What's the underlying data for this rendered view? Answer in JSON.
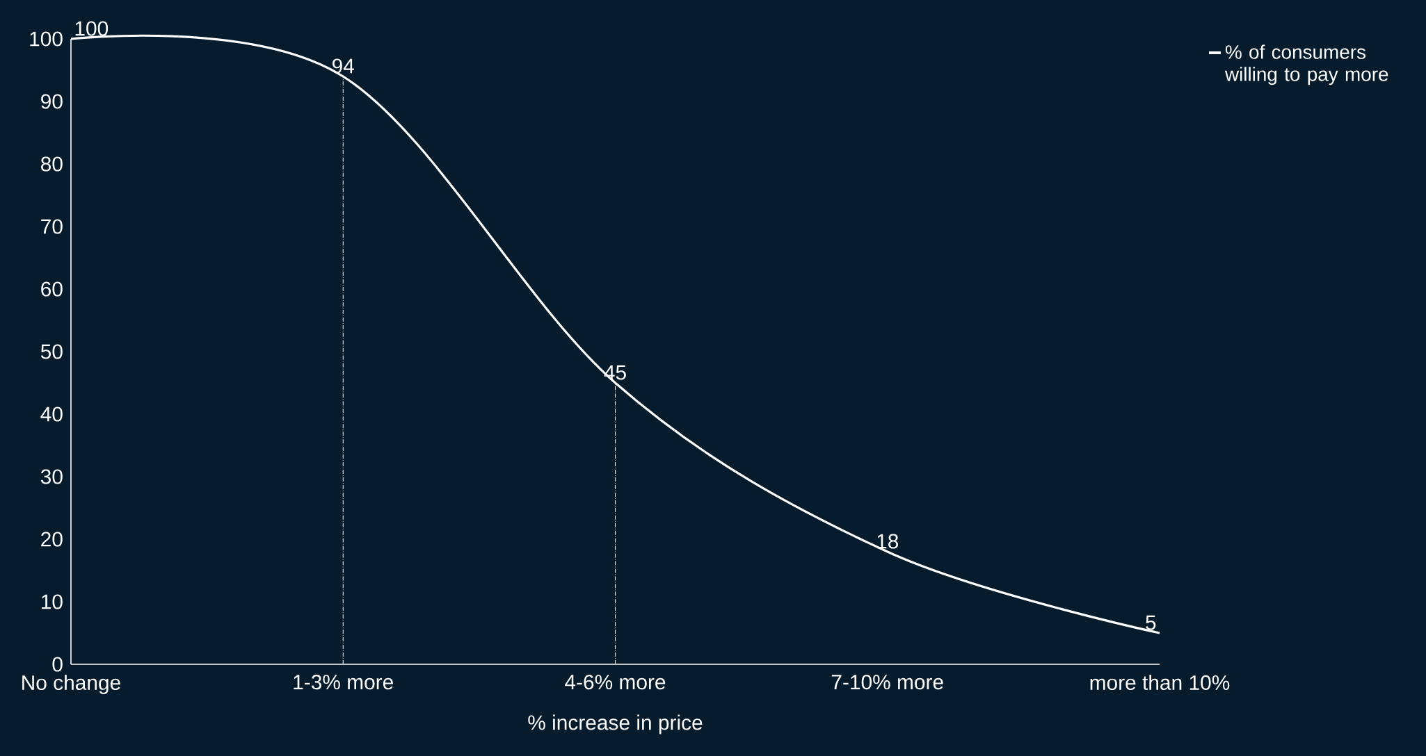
{
  "chart_data": {
    "type": "line",
    "xlabel": "% increase in price",
    "categories": [
      "No change",
      "1-3% more",
      "4-6% more",
      "7-10% more",
      "more than 10%"
    ],
    "series": [
      {
        "name": "% of consumers willing to pay more",
        "color": "#ffffff",
        "values": [
          100,
          94,
          45,
          18,
          5
        ]
      }
    ],
    "ylim": [
      0,
      100
    ],
    "yticks": [
      0,
      10,
      20,
      30,
      40,
      50,
      60,
      70,
      80,
      90,
      100
    ],
    "data_labels": true,
    "legend": "top right",
    "marker": "none",
    "line_style": "solid",
    "grid": false,
    "ref_lines": [
      {
        "axis": "x",
        "value": "1-3% more",
        "color": "#ffffff",
        "line_style": "dotted"
      },
      {
        "axis": "x",
        "value": "4-6% more",
        "color": "#ffffff",
        "line_style": "dotted"
      }
    ]
  }
}
